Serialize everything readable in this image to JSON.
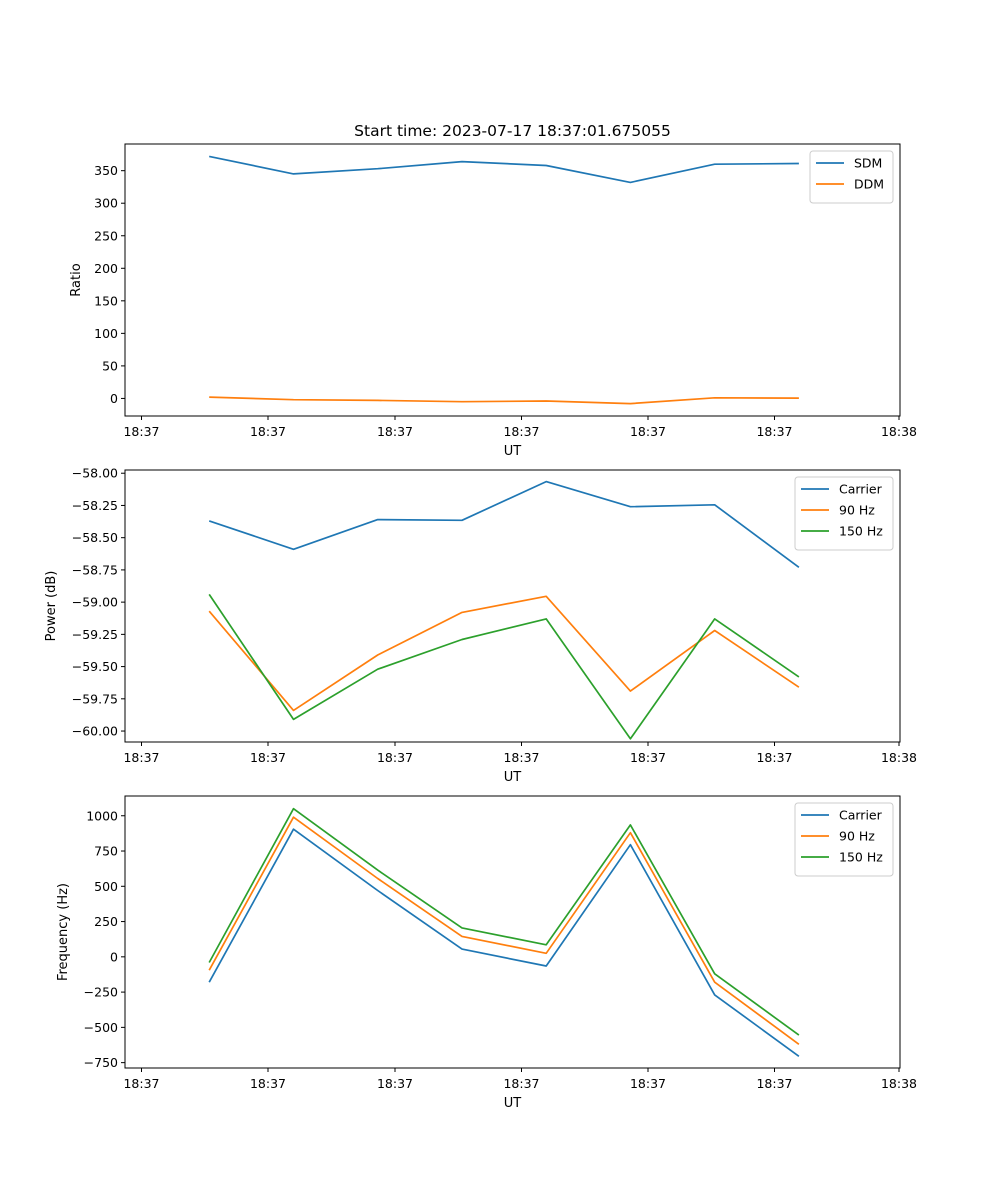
{
  "figure": {
    "title": "Start time: 2023-07-17 18:37:01.675055"
  },
  "chart_data": [
    {
      "type": "line",
      "title": "Start time: 2023-07-17 18:37:01.675055",
      "xlabel": "UT",
      "ylabel": "Ratio",
      "x_ticks": [
        "18:37",
        "18:37",
        "18:37",
        "18:37",
        "18:37",
        "18:37",
        "18:38"
      ],
      "x": [
        1,
        2,
        3,
        4,
        5,
        6,
        7,
        8
      ],
      "xlim": [
        0,
        9.2
      ],
      "ylim": [
        -27,
        391
      ],
      "y_ticks": [
        0,
        50,
        100,
        150,
        200,
        250,
        300,
        350
      ],
      "y_tick_labels": [
        "0",
        "50",
        "100",
        "150",
        "200",
        "250",
        "300",
        "350"
      ],
      "legend_position": "top-right",
      "series": [
        {
          "name": "SDM",
          "color": "#1f77b4",
          "values": [
            372,
            345,
            353,
            364,
            358,
            332,
            360,
            361
          ]
        },
        {
          "name": "DDM",
          "color": "#ff7f0e",
          "values": [
            2,
            -2,
            -3,
            -5,
            -4,
            -8,
            1,
            0.5
          ]
        }
      ]
    },
    {
      "type": "line",
      "title": "",
      "xlabel": "UT",
      "ylabel": "Power (dB)",
      "x_ticks": [
        "18:37",
        "18:37",
        "18:37",
        "18:37",
        "18:37",
        "18:37",
        "18:38"
      ],
      "x": [
        1,
        2,
        3,
        4,
        5,
        6,
        7,
        8
      ],
      "xlim": [
        0,
        9.2
      ],
      "ylim": [
        -60.085,
        -57.975
      ],
      "y_ticks": [
        -60.0,
        -59.75,
        -59.5,
        -59.25,
        -59.0,
        -58.75,
        -58.5,
        -58.25,
        -58.0
      ],
      "y_tick_labels": [
        "−60.00",
        "−59.75",
        "−59.50",
        "−59.25",
        "−59.00",
        "−58.75",
        "−58.50",
        "−58.25",
        "−58.00"
      ],
      "legend_position": "top-right",
      "series": [
        {
          "name": "Carrier",
          "color": "#1f77b4",
          "values": [
            -58.37,
            -58.59,
            -58.36,
            -58.365,
            -58.065,
            -58.26,
            -58.245,
            -58.73
          ]
        },
        {
          "name": "90 Hz",
          "color": "#ff7f0e",
          "values": [
            -59.07,
            -59.84,
            -59.41,
            -59.08,
            -58.955,
            -59.69,
            -59.22,
            -59.66
          ]
        },
        {
          "name": "150 Hz",
          "color": "#2ca02c",
          "values": [
            -58.94,
            -59.91,
            -59.52,
            -59.29,
            -59.13,
            -60.06,
            -59.13,
            -59.58
          ]
        }
      ]
    },
    {
      "type": "line",
      "title": "",
      "xlabel": "UT",
      "ylabel": "Frequency (Hz)",
      "x_ticks": [
        "18:37",
        "18:37",
        "18:37",
        "18:37",
        "18:37",
        "18:37",
        "18:38"
      ],
      "x": [
        1,
        2,
        3,
        4,
        5,
        6,
        7,
        8
      ],
      "xlim": [
        0,
        9.2
      ],
      "ylim": [
        -788,
        1140
      ],
      "y_ticks": [
        -750,
        -500,
        -250,
        0,
        250,
        500,
        750,
        1000
      ],
      "y_tick_labels": [
        "−750",
        "−500",
        "−250",
        "0",
        "250",
        "500",
        "750",
        "1000"
      ],
      "legend_position": "top-right",
      "series": [
        {
          "name": "Carrier",
          "color": "#1f77b4",
          "values": [
            -180,
            905,
            470,
            55,
            -65,
            795,
            -270,
            -705
          ]
        },
        {
          "name": "90 Hz",
          "color": "#ff7f0e",
          "values": [
            -95,
            990,
            555,
            145,
            25,
            880,
            -180,
            -620
          ]
        },
        {
          "name": "150 Hz",
          "color": "#2ca02c",
          "values": [
            -40,
            1050,
            615,
            205,
            85,
            935,
            -120,
            -555
          ]
        }
      ]
    }
  ]
}
